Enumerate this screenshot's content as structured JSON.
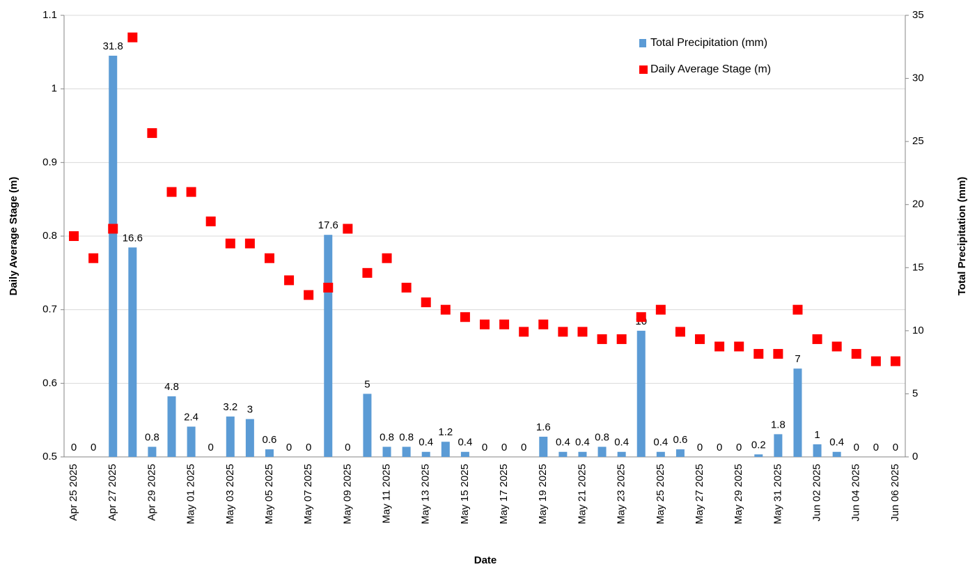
{
  "chart_data": {
    "type": "bar",
    "xlabel": "Date",
    "ylabel": "Daily Average Stage (m)",
    "y2label": "Total Precipitation (mm)",
    "categories": [
      "Apr 25 2025",
      null,
      "Apr 27 2025",
      null,
      "Apr 29 2025",
      null,
      "May 01 2025",
      null,
      "May 03 2025",
      null,
      "May 05 2025",
      null,
      "May 07 2025",
      null,
      "May 09 2025",
      null,
      "May 11 2025",
      null,
      "May 13 2025",
      null,
      "May 15 2025",
      null,
      "May 17 2025",
      null,
      "May 19 2025",
      null,
      "May 21 2025",
      null,
      "May 23 2025",
      null,
      "May 25 2025",
      null,
      "May 27 2025",
      null,
      "May 29 2025",
      null,
      "May 31 2025",
      null,
      "Jun 02 2025",
      null,
      "Jun 04 2025",
      null,
      "Jun 06 2025"
    ],
    "series": [
      {
        "name": "Total Precipitation (mm)",
        "type": "bar",
        "axis": "y2",
        "color": "#5b9bd5",
        "data_labels": true,
        "values": [
          0,
          0,
          31.8,
          16.6,
          0.8,
          4.8,
          2.4,
          0,
          3.2,
          3,
          0.6,
          0,
          0,
          17.6,
          0,
          5,
          0.8,
          0.8,
          0.4,
          1.2,
          0.4,
          0,
          0,
          0,
          1.6,
          0.4,
          0.4,
          0.8,
          0.4,
          10,
          0.4,
          0.6,
          0,
          0,
          0,
          0.2,
          1.8,
          7,
          1,
          0.4,
          0,
          0,
          0
        ]
      },
      {
        "name": "Daily Average Stage (m)",
        "type": "scatter",
        "axis": "y",
        "color": "#ff0000",
        "values": [
          0.8,
          0.77,
          0.81,
          1.07,
          0.94,
          0.86,
          0.86,
          0.82,
          0.79,
          0.79,
          0.77,
          0.74,
          0.72,
          0.73,
          0.81,
          0.75,
          0.77,
          0.73,
          0.71,
          0.7,
          0.69,
          0.68,
          0.68,
          0.67,
          0.68,
          0.67,
          0.67,
          0.66,
          0.66,
          0.69,
          0.7,
          0.67,
          0.66,
          0.65,
          0.65,
          0.64,
          0.64,
          0.7,
          0.66,
          0.65,
          0.64,
          0.63,
          0.63
        ]
      }
    ],
    "ylim": [
      0.5,
      1.1
    ],
    "yticks": [
      0.5,
      0.6,
      0.7,
      0.8,
      0.9,
      1,
      1.1
    ],
    "y2lim": [
      0,
      35
    ],
    "y2ticks": [
      0,
      5,
      10,
      15,
      20,
      25,
      30,
      35
    ],
    "grid": true,
    "legend": "upper right"
  }
}
